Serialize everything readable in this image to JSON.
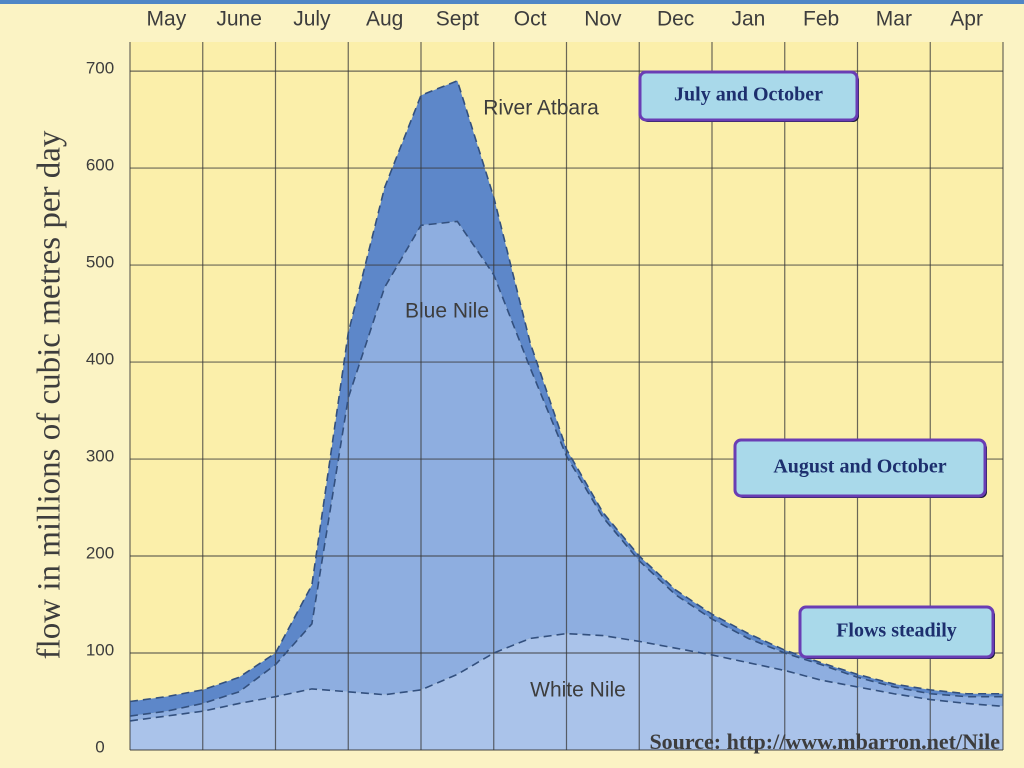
{
  "chart_data": {
    "type": "area",
    "stacked": true,
    "ylabel": "flow in millions of cubic metres per day",
    "x": [
      0,
      0.5,
      1,
      1.5,
      2,
      2.5,
      3,
      3.5,
      4,
      4.5,
      5,
      5.5,
      6,
      6.5,
      7,
      7.5,
      8,
      8.5,
      9,
      9.5,
      10,
      10.5,
      11,
      11.5,
      12
    ],
    "xlim": [
      0,
      12
    ],
    "xticks": [
      {
        "value": 0.5,
        "label": "May"
      },
      {
        "value": 1.5,
        "label": "June"
      },
      {
        "value": 2.5,
        "label": "July"
      },
      {
        "value": 3.5,
        "label": "Aug"
      },
      {
        "value": 4.5,
        "label": "Sept"
      },
      {
        "value": 5.5,
        "label": "Oct"
      },
      {
        "value": 6.5,
        "label": "Nov"
      },
      {
        "value": 7.5,
        "label": "Dec"
      },
      {
        "value": 8.5,
        "label": "Jan"
      },
      {
        "value": 9.5,
        "label": "Feb"
      },
      {
        "value": 10.5,
        "label": "Mar"
      },
      {
        "value": 11.5,
        "label": "Apr"
      }
    ],
    "ylim": [
      0,
      730
    ],
    "yticks": [
      0,
      100,
      200,
      300,
      400,
      500,
      600,
      700
    ],
    "grid": true,
    "series": [
      {
        "name": "White Nile",
        "color": "#aac3ea",
        "values": [
          30,
          35,
          40,
          48,
          55,
          63,
          60,
          57,
          62,
          78,
          100,
          115,
          120,
          118,
          112,
          105,
          98,
          90,
          82,
          72,
          65,
          58,
          52,
          48,
          45
        ]
      },
      {
        "name": "Blue Nile",
        "color": "#8eaee0",
        "values": [
          5,
          5,
          8,
          12,
          33,
          67,
          303,
          420,
          479,
          467,
          390,
          279,
          183,
          122,
          83,
          55,
          37,
          25,
          18,
          16,
          10,
          7,
          6,
          7,
          10
        ]
      },
      {
        "name": "River Atbara",
        "color": "#5d87c9",
        "values": [
          15,
          15,
          14,
          15,
          12,
          40,
          67,
          103,
          134,
          145,
          80,
          26,
          7,
          5,
          5,
          5,
          5,
          5,
          3,
          2,
          3,
          3,
          4,
          3,
          3
        ]
      }
    ],
    "annotations": [
      "July and October",
      "August and October",
      "Flows steadily"
    ],
    "source": "Source: http://www.mbarron.net/Nile"
  }
}
